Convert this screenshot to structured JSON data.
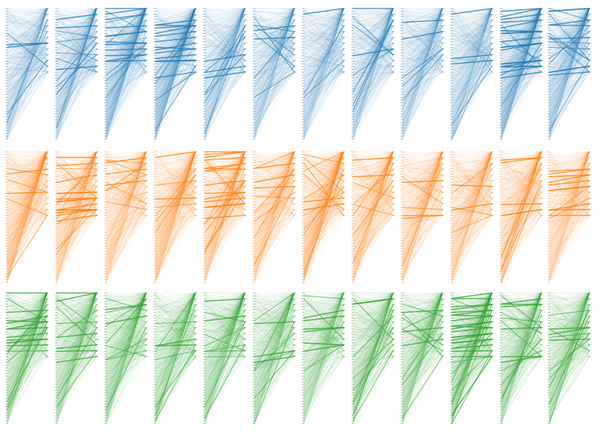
{
  "figure": {
    "rows": [
      {
        "color": "#1f77b4",
        "panels": [
          {
            "seed": 11,
            "strong": 3,
            "horizontal": 2,
            "diagonal_strength": 0.2
          },
          {
            "seed": 12,
            "strong": 10,
            "horizontal": 3,
            "diagonal_strength": 0.3
          },
          {
            "seed": 13,
            "strong": 6,
            "horizontal": 12,
            "diagonal_strength": 0.9
          },
          {
            "seed": 14,
            "strong": 4,
            "horizontal": 14,
            "diagonal_strength": 0.9
          },
          {
            "seed": 15,
            "strong": 5,
            "horizontal": 3,
            "diagonal_strength": 0.3
          },
          {
            "seed": 16,
            "strong": 6,
            "horizontal": 2,
            "diagonal_strength": 0.3
          },
          {
            "seed": 17,
            "strong": 2,
            "horizontal": 1,
            "diagonal_strength": 0.2
          },
          {
            "seed": 18,
            "strong": 6,
            "horizontal": 2,
            "diagonal_strength": 0.25
          },
          {
            "seed": 19,
            "strong": 3,
            "horizontal": 2,
            "diagonal_strength": 0.2
          },
          {
            "seed": 20,
            "strong": 2,
            "horizontal": 3,
            "diagonal_strength": 0.3
          },
          {
            "seed": 21,
            "strong": 4,
            "horizontal": 20,
            "diagonal_strength": 1.0
          },
          {
            "seed": 22,
            "strong": 10,
            "horizontal": 8,
            "diagonal_strength": 0.6
          }
        ]
      },
      {
        "color": "#ff7f0e",
        "panels": [
          {
            "seed": 31,
            "strong": 4,
            "horizontal": 2,
            "diagonal_strength": 1.0
          },
          {
            "seed": 32,
            "strong": 8,
            "horizontal": 14,
            "diagonal_strength": 0.4
          },
          {
            "seed": 33,
            "strong": 6,
            "horizontal": 3,
            "diagonal_strength": 0.4
          },
          {
            "seed": 34,
            "strong": 5,
            "horizontal": 2,
            "diagonal_strength": 0.8
          },
          {
            "seed": 35,
            "strong": 8,
            "horizontal": 14,
            "diagonal_strength": 0.5
          },
          {
            "seed": 36,
            "strong": 6,
            "horizontal": 3,
            "diagonal_strength": 0.4
          },
          {
            "seed": 37,
            "strong": 10,
            "horizontal": 2,
            "diagonal_strength": 1.0
          },
          {
            "seed": 38,
            "strong": 6,
            "horizontal": 2,
            "diagonal_strength": 0.5
          },
          {
            "seed": 39,
            "strong": 3,
            "horizontal": 3,
            "diagonal_strength": 0.3
          },
          {
            "seed": 40,
            "strong": 3,
            "horizontal": 2,
            "diagonal_strength": 0.4
          },
          {
            "seed": 41,
            "strong": 6,
            "horizontal": 4,
            "diagonal_strength": 0.4
          },
          {
            "seed": 42,
            "strong": 2,
            "horizontal": 10,
            "diagonal_strength": 0.3
          }
        ]
      },
      {
        "color": "#2ca02c",
        "panels": [
          {
            "seed": 51,
            "strong": 10,
            "horizontal": 10,
            "diagonal_strength": 0.6
          },
          {
            "seed": 52,
            "strong": 6,
            "horizontal": 6,
            "diagonal_strength": 0.5
          },
          {
            "seed": 53,
            "strong": 8,
            "horizontal": 2,
            "diagonal_strength": 0.7
          },
          {
            "seed": 54,
            "strong": 6,
            "horizontal": 2,
            "diagonal_strength": 0.5
          },
          {
            "seed": 55,
            "strong": 8,
            "horizontal": 2,
            "diagonal_strength": 0.6
          },
          {
            "seed": 56,
            "strong": 6,
            "horizontal": 3,
            "diagonal_strength": 0.4
          },
          {
            "seed": 57,
            "strong": 3,
            "horizontal": 6,
            "diagonal_strength": 0.3
          },
          {
            "seed": 58,
            "strong": 8,
            "horizontal": 2,
            "diagonal_strength": 0.5
          },
          {
            "seed": 59,
            "strong": 8,
            "horizontal": 3,
            "diagonal_strength": 0.6
          },
          {
            "seed": 60,
            "strong": 12,
            "horizontal": 20,
            "diagonal_strength": 0.8
          },
          {
            "seed": 61,
            "strong": 8,
            "horizontal": 6,
            "diagonal_strength": 0.5
          },
          {
            "seed": 62,
            "strong": 8,
            "horizontal": 3,
            "diagonal_strength": 0.5
          }
        ]
      }
    ]
  }
}
